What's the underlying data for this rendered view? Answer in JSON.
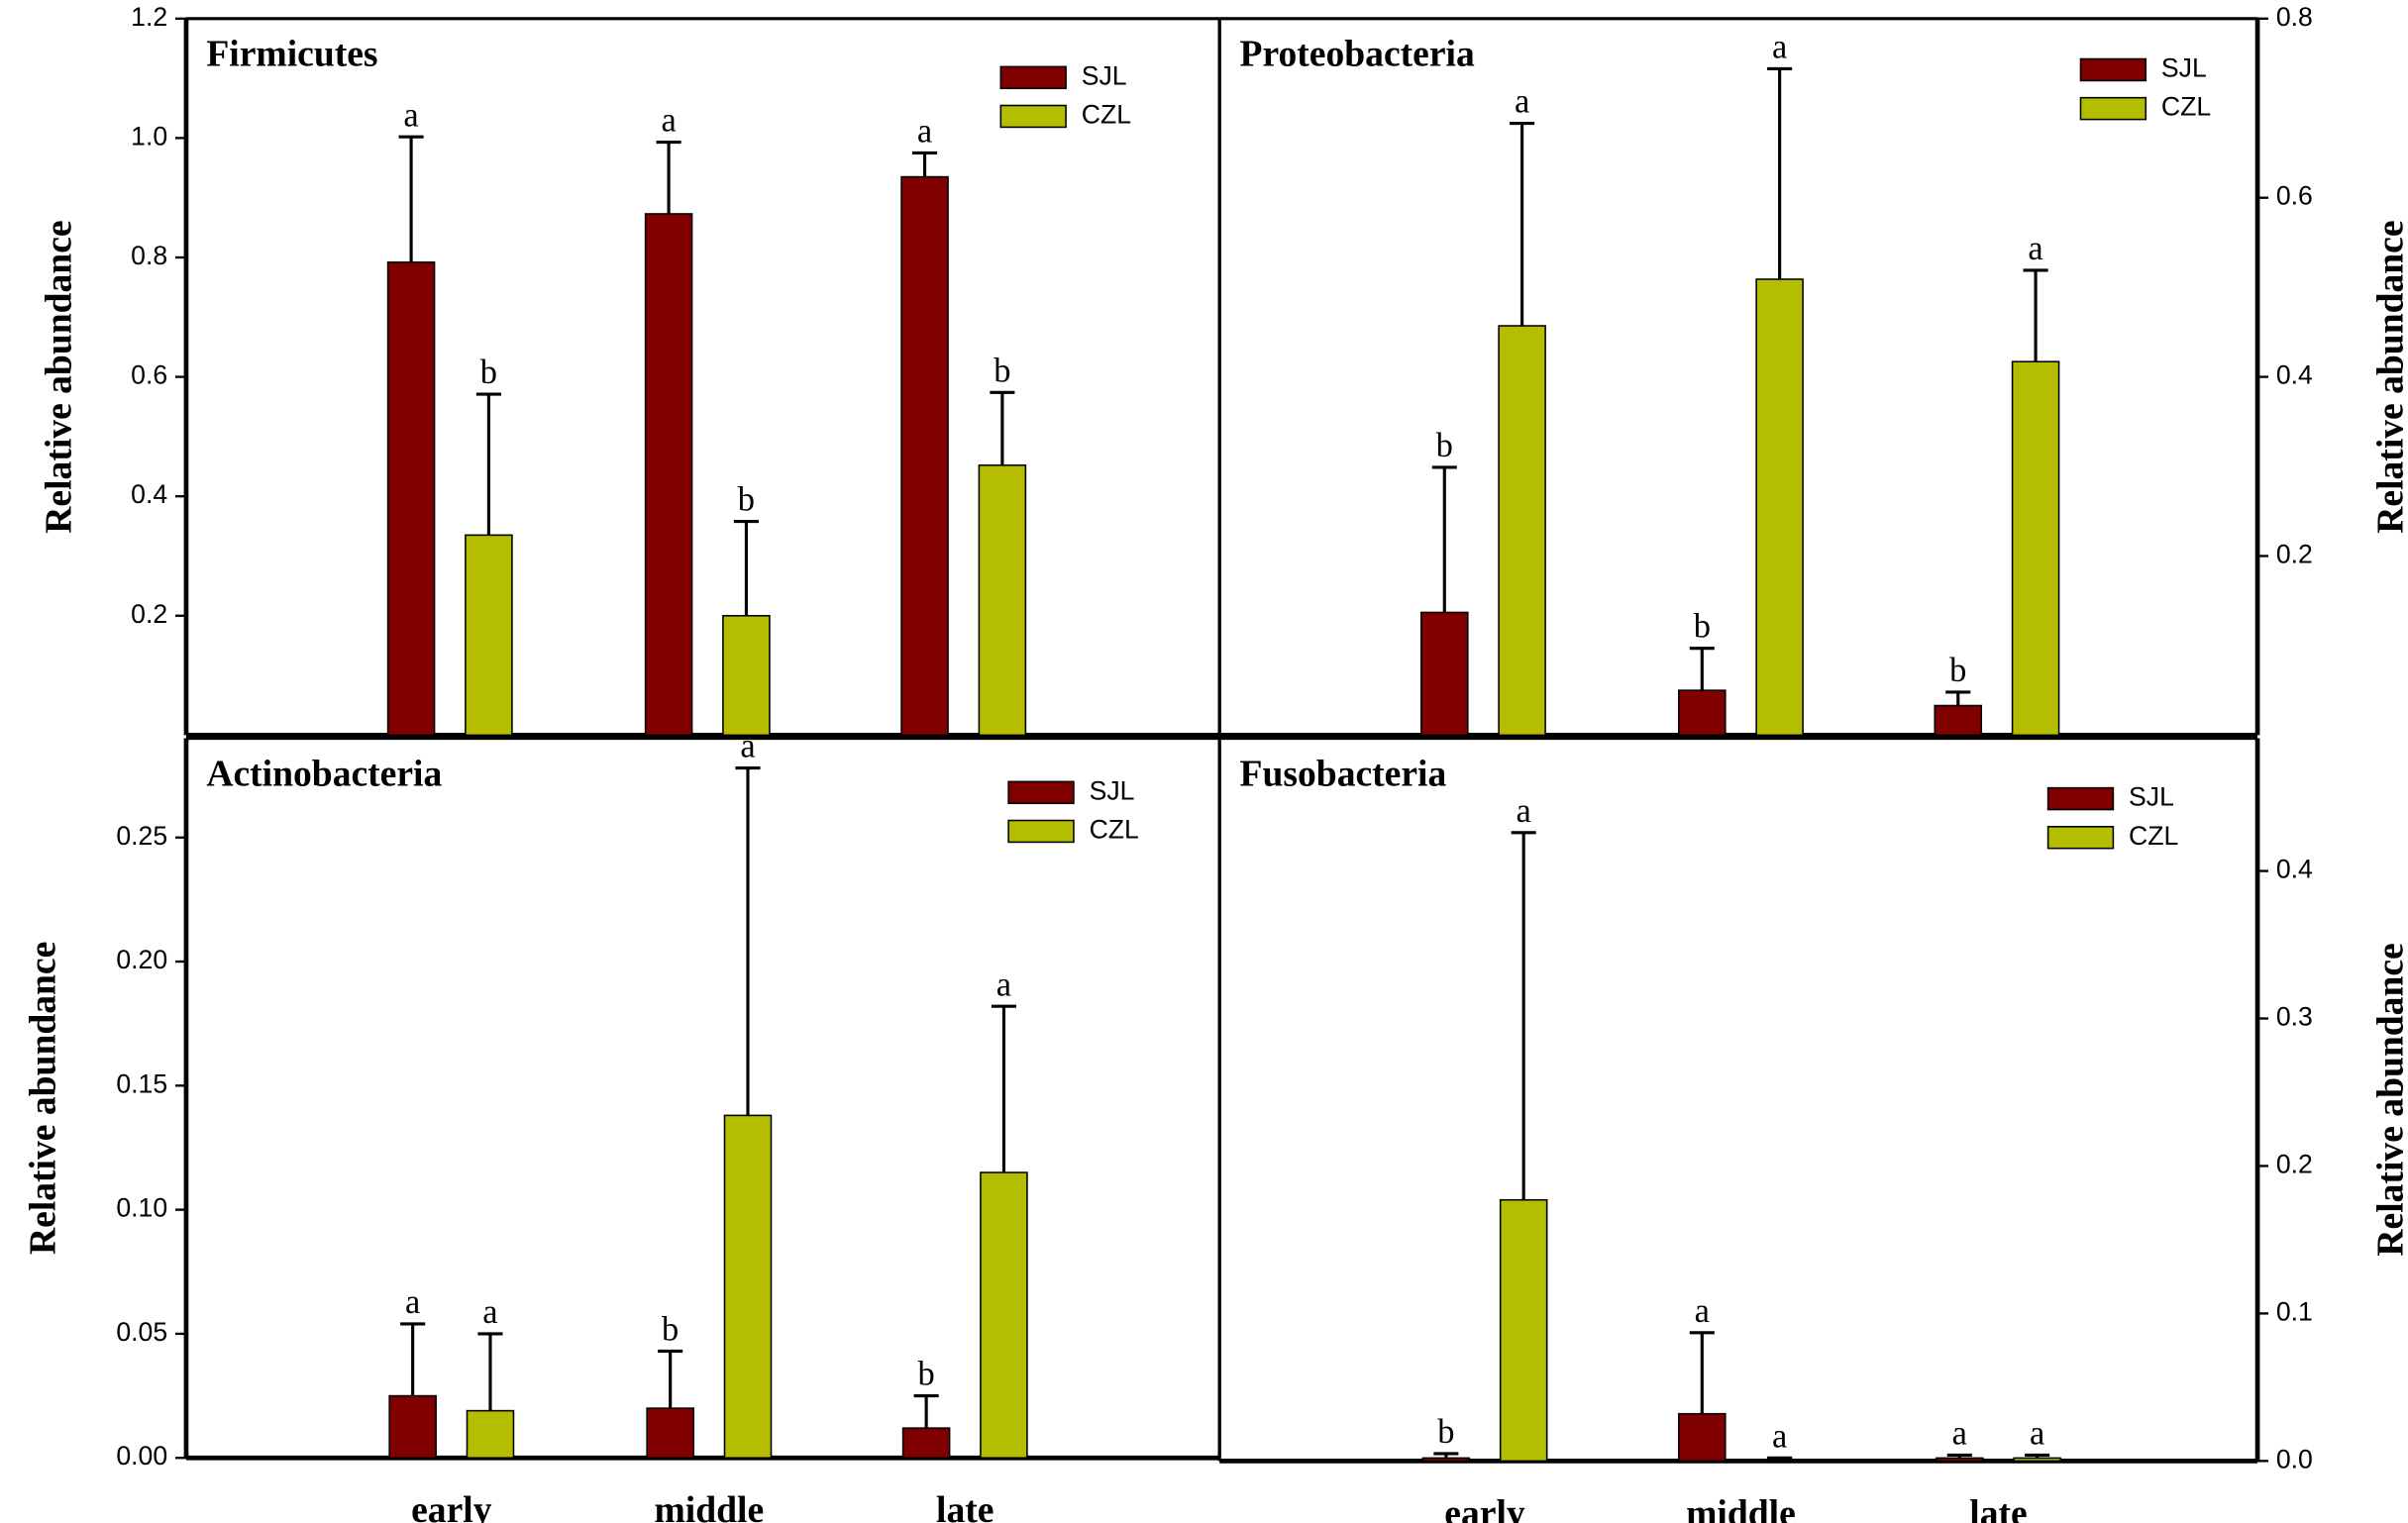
{
  "chart_data": [
    {
      "type": "bar",
      "title": "Firmicutes",
      "y_label": "Relative abundance",
      "axis_side": "left",
      "ylim": [
        0,
        1.2
      ],
      "yticks": [
        0.2,
        0.4,
        0.6,
        0.8,
        {
          "value": 1.0,
          "label": "1.0"
        },
        1.2
      ],
      "series": [
        {
          "name": "SJL",
          "color": "#800000",
          "values": [
            0.792,
            0.873,
            0.935
          ],
          "errors": [
            0.21,
            0.12,
            0.04
          ],
          "significance_labels": [
            "a",
            "a",
            "a"
          ]
        },
        {
          "name": "CZL",
          "color": "#b5bd00",
          "values": [
            0.335,
            0.2,
            0.452
          ],
          "errors": [
            0.236,
            0.158,
            0.122
          ],
          "significance_labels": [
            "b",
            "b",
            "b"
          ]
        }
      ]
    },
    {
      "type": "bar",
      "title": "Proteobacteria",
      "y_label": "Relative abundance",
      "axis_side": "right",
      "ylim": [
        0,
        0.8
      ],
      "yticks": [
        0.2,
        0.4,
        0.6,
        0.8
      ],
      "series": [
        {
          "name": "SJL",
          "color": "#800000",
          "values": [
            0.137,
            0.05,
            0.033
          ],
          "errors": [
            0.162,
            0.047,
            0.015
          ],
          "significance_labels": [
            "b",
            "b",
            "b"
          ]
        },
        {
          "name": "CZL",
          "color": "#b5bd00",
          "values": [
            0.457,
            0.509,
            0.417
          ],
          "errors": [
            0.226,
            0.235,
            0.102
          ],
          "significance_labels": [
            "a",
            "a",
            "a"
          ]
        }
      ]
    },
    {
      "type": "bar",
      "title": "Actinobacteria",
      "y_label": "Relative abundance",
      "axis_side": "left",
      "categories": [
        "early",
        "middle",
        "late"
      ],
      "ylim": [
        0,
        0.29
      ],
      "yticks": [
        {
          "value": 0,
          "label": "0.00"
        },
        0.05,
        {
          "value": 0.1,
          "label": "0.10"
        },
        0.15,
        {
          "value": 0.2,
          "label": "0.20"
        },
        0.25
      ],
      "series": [
        {
          "name": "SJL",
          "color": "#800000",
          "values": [
            0.025,
            0.02,
            0.012
          ],
          "errors": [
            0.029,
            0.023,
            0.013
          ],
          "significance_labels": [
            "a",
            "b",
            "b"
          ]
        },
        {
          "name": "CZL",
          "color": "#b5bd00",
          "values": [
            0.019,
            0.138,
            0.115
          ],
          "errors": [
            0.031,
            0.14,
            0.067
          ],
          "significance_labels": [
            "a",
            "a",
            "a"
          ]
        }
      ]
    },
    {
      "type": "bar",
      "title": "Fusobacteria",
      "y_label": "Relative abundance",
      "axis_side": "right",
      "categories": [
        "early",
        "middle",
        "late"
      ],
      "ylim": [
        0,
        0.49
      ],
      "yticks": [
        {
          "value": 0,
          "label": "0.0"
        },
        0.1,
        0.2,
        0.3,
        0.4
      ],
      "series": [
        {
          "name": "SJL",
          "color": "#800000",
          "values": [
            0.002,
            0.032,
            0.002
          ],
          "errors": [
            0.003,
            0.055,
            0.002
          ],
          "significance_labels": [
            "b",
            "a",
            "a"
          ]
        },
        {
          "name": "CZL",
          "color": "#b5bd00",
          "values": [
            0.177,
            0.001,
            0.002
          ],
          "errors": [
            0.249,
            0.001,
            0.002
          ],
          "significance_labels": [
            "a",
            "a",
            "a"
          ]
        }
      ]
    }
  ]
}
